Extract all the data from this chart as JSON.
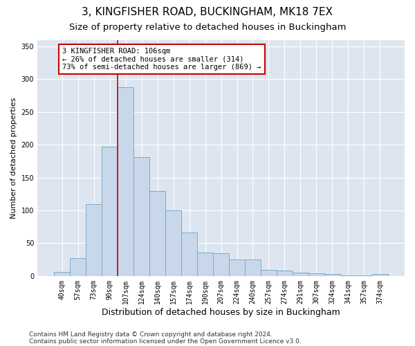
{
  "title": "3, KINGFISHER ROAD, BUCKINGHAM, MK18 7EX",
  "subtitle": "Size of property relative to detached houses in Buckingham",
  "xlabel": "Distribution of detached houses by size in Buckingham",
  "ylabel": "Number of detached properties",
  "categories": [
    "40sqm",
    "57sqm",
    "73sqm",
    "90sqm",
    "107sqm",
    "124sqm",
    "140sqm",
    "157sqm",
    "174sqm",
    "190sqm",
    "207sqm",
    "224sqm",
    "240sqm",
    "257sqm",
    "274sqm",
    "291sqm",
    "307sqm",
    "324sqm",
    "341sqm",
    "357sqm",
    "374sqm"
  ],
  "values": [
    6,
    27,
    110,
    197,
    288,
    181,
    130,
    100,
    66,
    36,
    35,
    25,
    25,
    9,
    8,
    5,
    4,
    3,
    1,
    1,
    3
  ],
  "bar_color": "#c8d8ea",
  "bar_edge_color": "#7aaac8",
  "ref_line_color": "#cc0000",
  "annotation_box_color": "#ffffff",
  "annotation_box_edge_color": "#cc0000",
  "ylim": [
    0,
    360
  ],
  "yticks": [
    0,
    50,
    100,
    150,
    200,
    250,
    300,
    350
  ],
  "background_color": "#dde6f0",
  "grid_color": "#ffffff",
  "footer_line1": "Contains HM Land Registry data © Crown copyright and database right 2024.",
  "footer_line2": "Contains public sector information licensed under the Open Government Licence v3.0.",
  "title_fontsize": 11,
  "subtitle_fontsize": 9.5,
  "xlabel_fontsize": 9,
  "ylabel_fontsize": 8,
  "tick_fontsize": 7,
  "annotation_fontsize": 7.5,
  "footer_fontsize": 6.5,
  "annotation_line1": "3 KINGFISHER ROAD: 106sqm",
  "annotation_line2": "← 26% of detached houses are smaller (314)",
  "annotation_line3": "73% of semi-detached houses are larger (869) →",
  "ref_bar_index": 4
}
